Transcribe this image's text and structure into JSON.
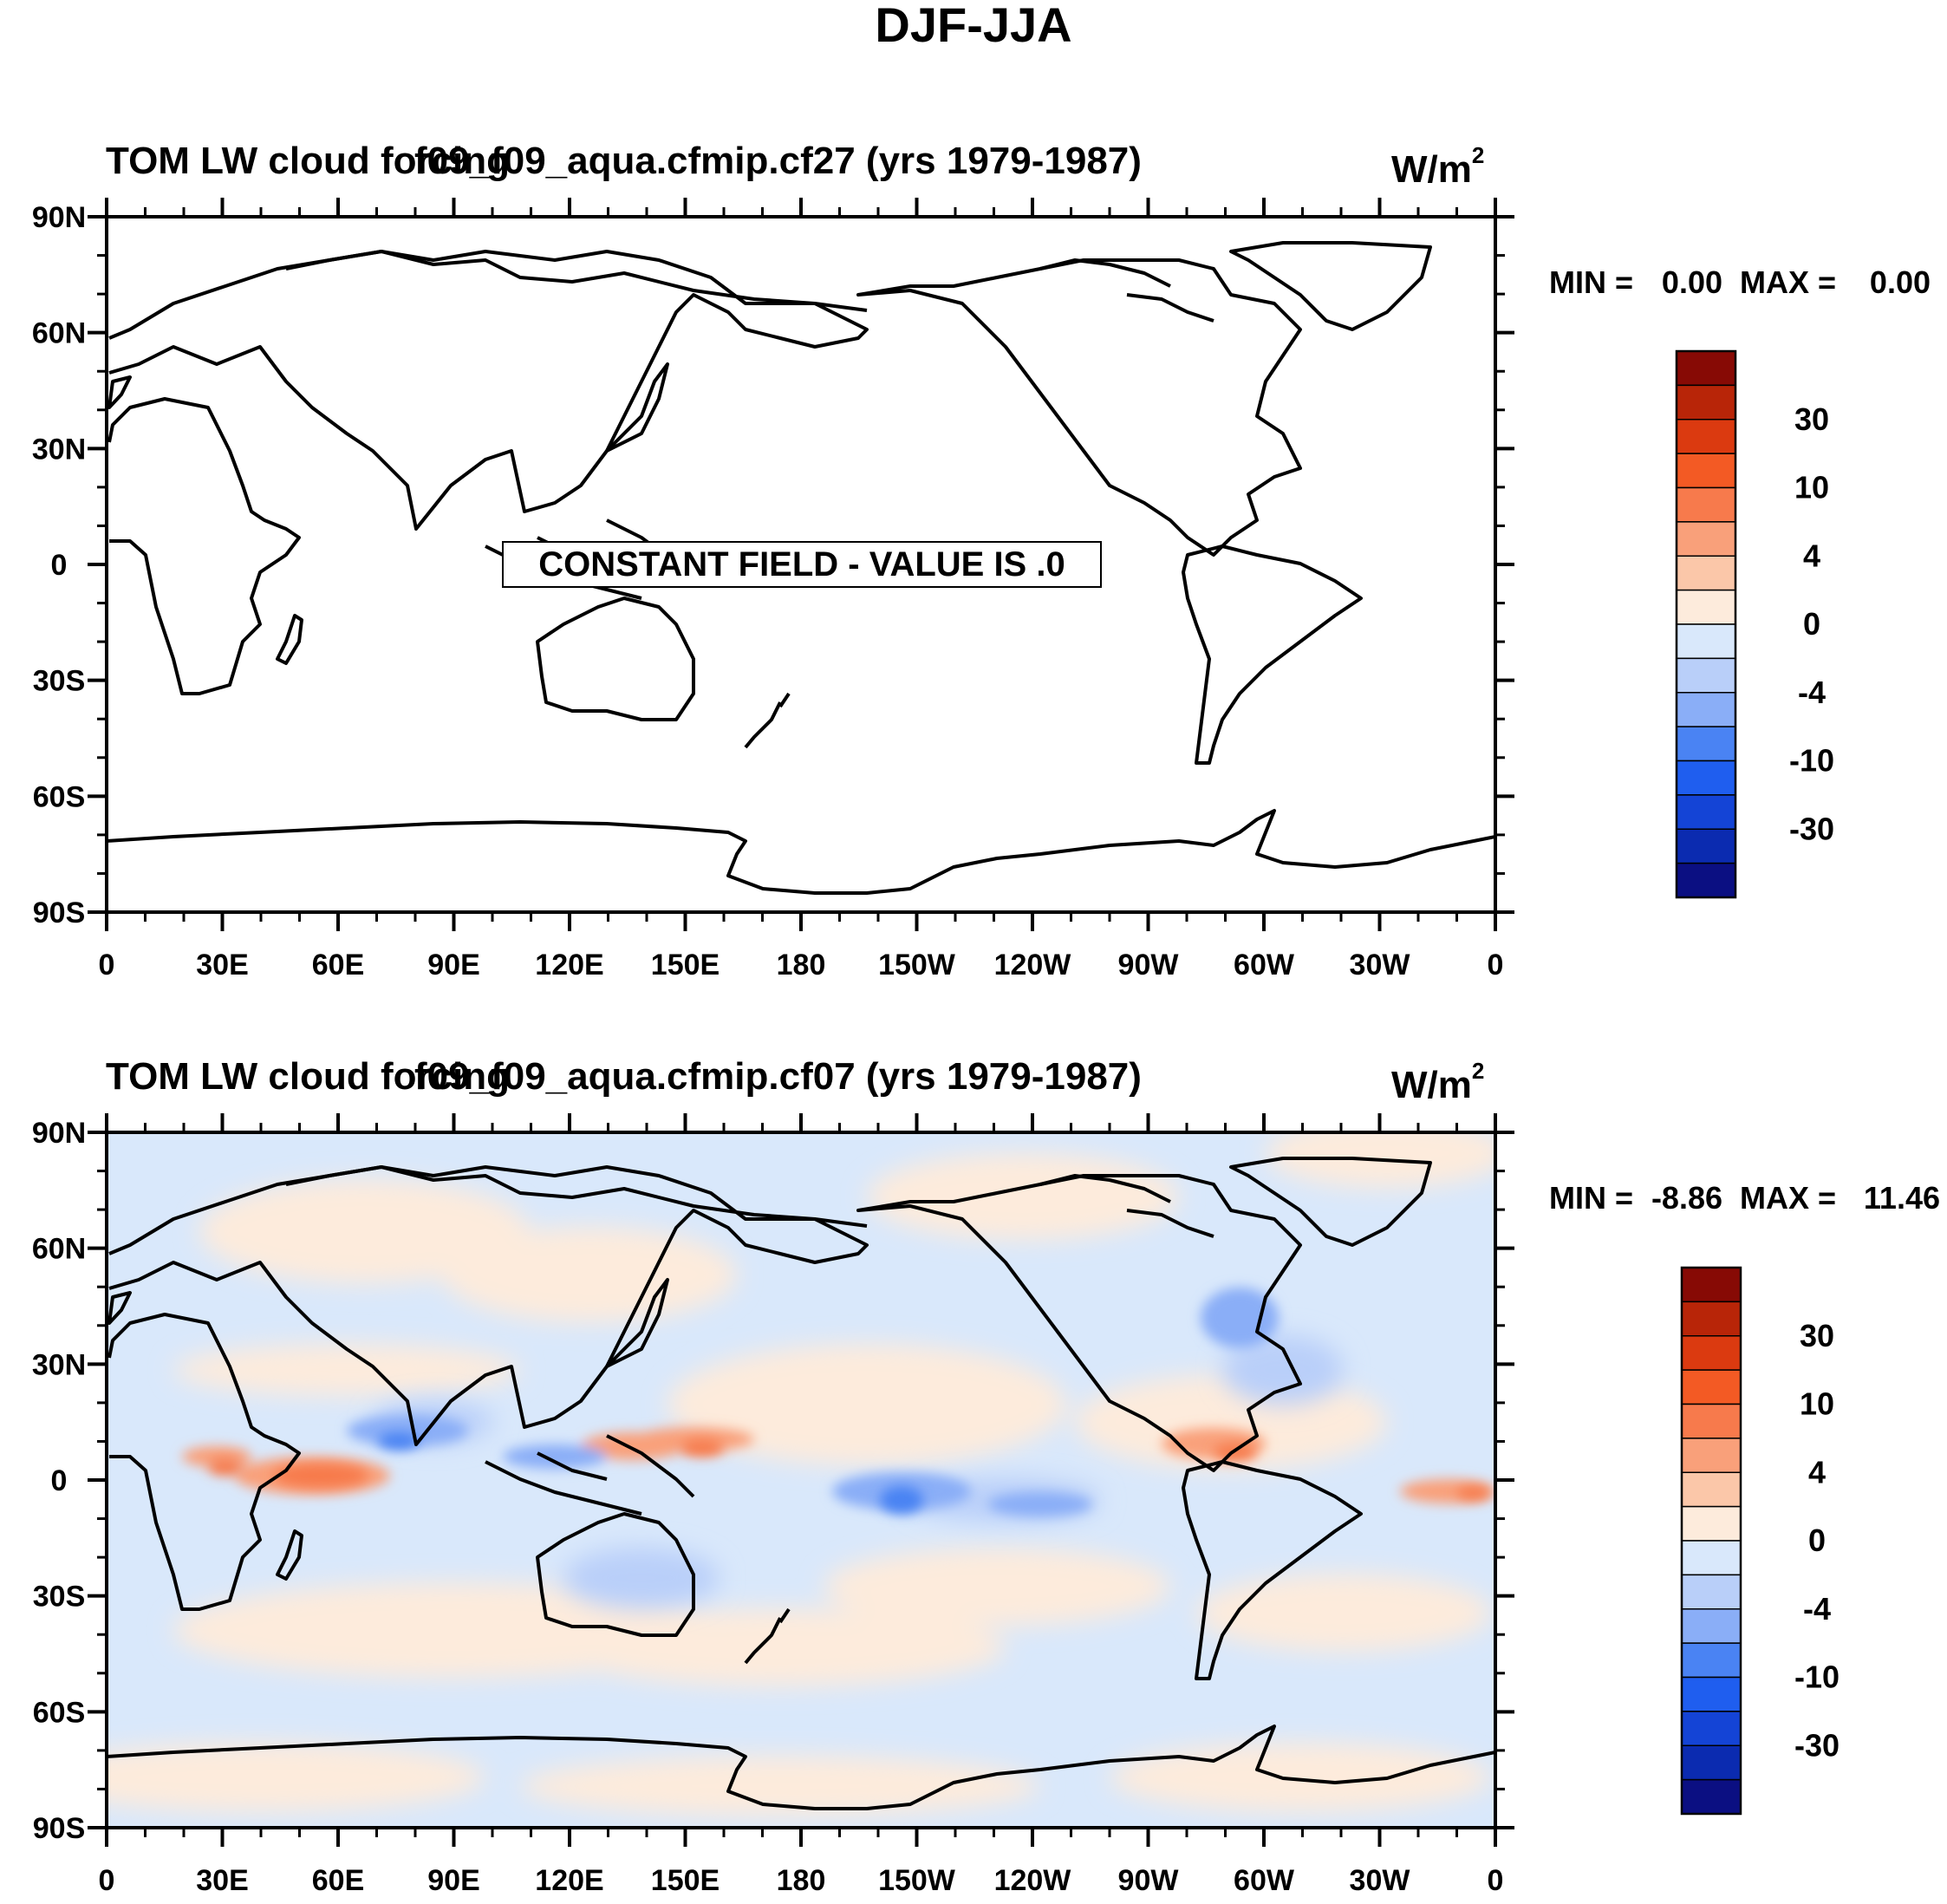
{
  "figure_title": "DJF-JJA",
  "colors": {
    "levels": [
      "#0b0f82",
      "#0b2bb0",
      "#1444d6",
      "#1f5eef",
      "#4a83f3",
      "#8aaef7",
      "#b9cff9",
      "#d9e8fb",
      "#fdebdc",
      "#fbc7a9",
      "#f9a07a",
      "#f77a4c",
      "#f35a24",
      "#db3a10",
      "#b82508",
      "#870a05"
    ],
    "coast": "#000000",
    "background": "#ffffff"
  },
  "colorbar_labels": [
    "30",
    "10",
    "4",
    "0",
    "-4",
    "-10",
    "-30"
  ],
  "lon_ticks": [
    "0",
    "30E",
    "60E",
    "90E",
    "120E",
    "150E",
    "180",
    "150W",
    "120W",
    "90W",
    "60W",
    "30W",
    "0"
  ],
  "lat_ticks": [
    "90N",
    "60N",
    "30N",
    "0",
    "30S",
    "60S",
    "90S"
  ],
  "panels": [
    {
      "title_left": "TOM LW cloud forcing",
      "title_case": "f09_f09_aqua.cfmip.cf27 (yrs 1979-1987)",
      "units": "W/m",
      "units_sup": "2",
      "min_label": "MIN =",
      "min_value": "0.00",
      "max_label": "MAX =",
      "max_value": "0.00",
      "annotation": "CONSTANT FIELD - VALUE IS .0"
    },
    {
      "title_left": "TOM LW cloud forcing",
      "title_case": "f09_f09_aqua.cfmip.cf07 (yrs 1979-1987)",
      "units": "W/m",
      "units_sup": "2",
      "min_label": "MIN =",
      "min_value": "-8.86",
      "max_label": "MAX =",
      "max_value": "11.46",
      "annotation": ""
    }
  ],
  "chart_data": [
    {
      "type": "heatmap",
      "title": "TOM LW cloud forcing f09_f09_aqua.cfmip.cf27 (yrs 1979-1987)",
      "projection": "cylindrical equidistant",
      "xlabel": "",
      "ylabel": "",
      "x_range_deg": [
        0,
        360
      ],
      "y_range_deg": [
        -90,
        90
      ],
      "units": "W/m2",
      "field": "constant 0.0",
      "min": 0.0,
      "max": 0.0,
      "contour_levels": [
        -30,
        -10,
        -4,
        0,
        4,
        10,
        30
      ]
    },
    {
      "type": "heatmap",
      "title": "TOM LW cloud forcing f09_f09_aqua.cfmip.cf07 (yrs 1979-1987)",
      "projection": "cylindrical equidistant",
      "xlabel": "",
      "ylabel": "",
      "x_range_deg": [
        0,
        360
      ],
      "y_range_deg": [
        -90,
        90
      ],
      "units": "W/m2",
      "min": -8.86,
      "max": 11.46,
      "contour_levels": [
        -30,
        -10,
        -4,
        0,
        4,
        10,
        30
      ],
      "features": [
        {
          "lon": 45,
          "lat": 2,
          "value": 7,
          "note": "positive band over equatorial Africa / Indian Ocean"
        },
        {
          "lon": 155,
          "lat": 10,
          "value": 6,
          "note": "positive west Pacific warm pool"
        },
        {
          "lon": 290,
          "lat": 8,
          "value": 6,
          "note": "positive northern South America"
        },
        {
          "lon": 355,
          "lat": -3,
          "value": 7,
          "note": "positive equatorial Atlantic"
        },
        {
          "lon": 210,
          "lat": -5,
          "value": -8,
          "note": "negative central Pacific"
        },
        {
          "lon": 80,
          "lat": 12,
          "value": -5,
          "note": "negative India / Bay of Bengal"
        },
        {
          "lon": 300,
          "lat": 33,
          "value": -4,
          "note": "negative western North Atlantic"
        }
      ]
    }
  ]
}
